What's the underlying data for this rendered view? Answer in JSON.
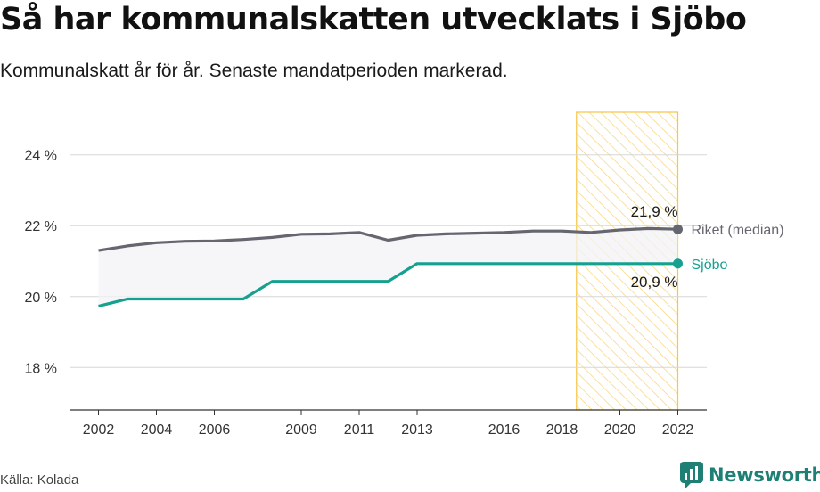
{
  "title": "Så har kommunalskatten utvecklats i Sjöbo",
  "subtitle": "Kommunalskatt år för år. Senaste mandatperioden markerad.",
  "source": "Källa: Kolada",
  "brand": "Newsworthy",
  "colors": {
    "riket": "#666670",
    "sjobo": "#16a090",
    "highlight": "#f7c547",
    "band": "#f3f3f5",
    "brand": "#1e7f74"
  },
  "chart_data": {
    "type": "line",
    "title": "Så har kommunalskatten utvecklats i Sjöbo",
    "subtitle": "Kommunalskatt år för år. Senaste mandatperioden markerad.",
    "ylim": [
      16.8,
      25.2
    ],
    "xlim": [
      2001,
      2023
    ],
    "yticks": [
      18,
      20,
      22,
      24
    ],
    "ytick_labels": [
      "18 %",
      "20 %",
      "22 %",
      "24 %"
    ],
    "xticks": [
      2002,
      2004,
      2006,
      2009,
      2011,
      2013,
      2016,
      2018,
      2020,
      2022
    ],
    "xtick_labels": [
      "2002",
      "2004",
      "2006",
      "2009",
      "2011",
      "2013",
      "2016",
      "2018",
      "2020",
      "2022"
    ],
    "highlight_period": [
      2018.5,
      2022
    ],
    "series": [
      {
        "name": "Riket (median)",
        "x": [
          2002,
          2003,
          2004,
          2005,
          2006,
          2007,
          2008,
          2009,
          2010,
          2011,
          2012,
          2013,
          2014,
          2015,
          2016,
          2017,
          2018,
          2019,
          2020,
          2021,
          2022
        ],
        "values": [
          21.3,
          21.43,
          21.52,
          21.56,
          21.57,
          21.61,
          21.67,
          21.76,
          21.77,
          21.81,
          21.59,
          21.73,
          21.77,
          21.79,
          21.81,
          21.85,
          21.85,
          21.81,
          21.88,
          21.92,
          21.9
        ],
        "end_label": "21,9 %"
      },
      {
        "name": "Sjöbo",
        "x": [
          2002,
          2003,
          2004,
          2005,
          2006,
          2007,
          2008,
          2009,
          2010,
          2011,
          2012,
          2013,
          2014,
          2015,
          2016,
          2017,
          2018,
          2019,
          2020,
          2021,
          2022
        ],
        "values": [
          19.73,
          19.93,
          19.93,
          19.93,
          19.93,
          19.93,
          20.43,
          20.43,
          20.43,
          20.43,
          20.43,
          20.93,
          20.93,
          20.93,
          20.93,
          20.93,
          20.93,
          20.93,
          20.93,
          20.93,
          20.93
        ],
        "end_label": "20,9 %"
      }
    ]
  }
}
